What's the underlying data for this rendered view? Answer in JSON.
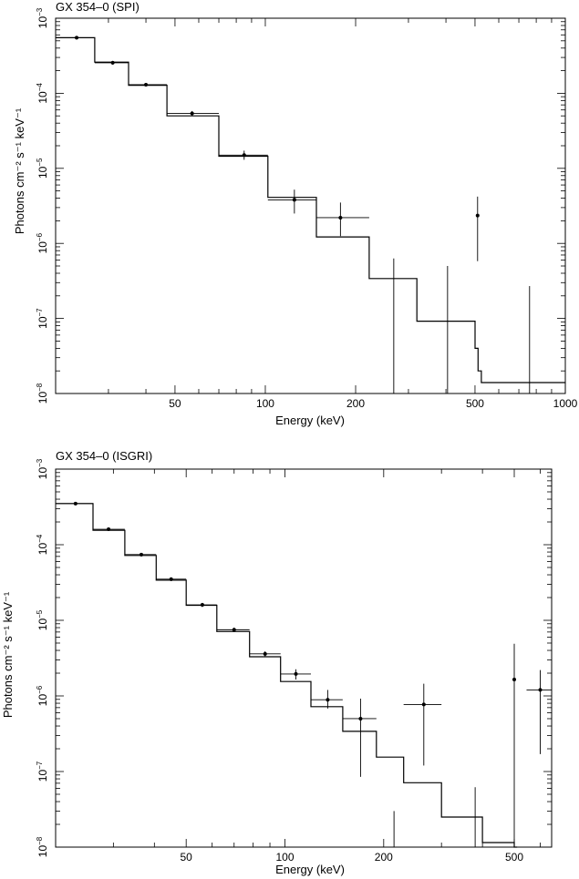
{
  "chart_data": [
    {
      "type": "line",
      "title": "GX 354–0 (SPI)",
      "xlabel": "Energy (keV)",
      "ylabel": "Photons cm⁻² s⁻¹ keV⁻¹",
      "xscale": "log",
      "yscale": "log",
      "xlim": [
        20,
        1000
      ],
      "ylim": [
        1e-08,
        0.001
      ],
      "x_tick_labels": [
        {
          "value": 50,
          "label": "50"
        },
        {
          "value": 100,
          "label": "100"
        },
        {
          "value": 200,
          "label": "200"
        },
        {
          "value": 500,
          "label": "500"
        },
        {
          "value": 1000,
          "label": "1000"
        }
      ],
      "y_tick_labels": [
        {
          "value": 1e-08,
          "base": "10",
          "exp": "−8"
        },
        {
          "value": 1e-07,
          "base": "10",
          "exp": "−7"
        },
        {
          "value": 1e-06,
          "base": "10",
          "exp": "−6"
        },
        {
          "value": 1e-05,
          "base": "10",
          "exp": "−5"
        },
        {
          "value": 0.0001,
          "base": "10",
          "exp": "−4"
        },
        {
          "value": 0.001,
          "base": "10",
          "exp": "−3"
        }
      ],
      "data": [
        {
          "x": 23.5,
          "xlo": 20,
          "xhi": 27,
          "y": 0.00055,
          "ylo": 0.00052,
          "yhi": 0.00058
        },
        {
          "x": 31,
          "xlo": 27,
          "xhi": 35,
          "y": 0.000255,
          "ylo": 0.00024,
          "yhi": 0.00027
        },
        {
          "x": 40,
          "xlo": 35,
          "xhi": 47,
          "y": 0.00013,
          "ylo": 0.000123,
          "yhi": 0.000137
        },
        {
          "x": 57,
          "xlo": 47,
          "xhi": 70,
          "y": 5.4e-05,
          "ylo": 5e-05,
          "yhi": 5.8e-05
        },
        {
          "x": 85,
          "xlo": 70,
          "xhi": 102,
          "y": 1.5e-05,
          "ylo": 1.3e-05,
          "yhi": 1.72e-05
        },
        {
          "x": 125,
          "xlo": 102,
          "xhi": 148,
          "y": 3.8e-06,
          "ylo": 2.5e-06,
          "yhi": 5.2e-06
        },
        {
          "x": 178,
          "xlo": 148,
          "xhi": 222,
          "y": 2.2e-06,
          "ylo": 1.25e-06,
          "yhi": 3.5e-06
        },
        {
          "x": 268,
          "xlo": 268,
          "xhi": 268,
          "y": 0,
          "yhi": 6.3e-07
        },
        {
          "x": 405,
          "xlo": 405,
          "xhi": 405,
          "y": 0,
          "yhi": 5e-07
        },
        {
          "x": 510,
          "xlo": 505,
          "xhi": 515,
          "y": 2.35e-06,
          "ylo": 5.8e-07,
          "yhi": 4.2e-06
        },
        {
          "x": 760,
          "xlo": 760,
          "xhi": 760,
          "y": 0,
          "yhi": 2.7e-07
        }
      ],
      "model": [
        {
          "xlo": 20,
          "xhi": 27,
          "y": 0.00055
        },
        {
          "xlo": 27,
          "xhi": 35,
          "y": 0.00026
        },
        {
          "xlo": 35,
          "xhi": 47,
          "y": 0.000128
        },
        {
          "xlo": 47,
          "xhi": 70,
          "y": 5e-05
        },
        {
          "xlo": 70,
          "xhi": 102,
          "y": 1.45e-05
        },
        {
          "xlo": 102,
          "xhi": 148,
          "y": 4.1e-06
        },
        {
          "xlo": 148,
          "xhi": 222,
          "y": 1.22e-06
        },
        {
          "xlo": 222,
          "xhi": 320,
          "y": 3.4e-07
        },
        {
          "xlo": 320,
          "xhi": 500,
          "y": 9.2e-08
        },
        {
          "xlo": 500,
          "xhi": 512,
          "y": 4e-08
        },
        {
          "xlo": 512,
          "xhi": 525,
          "y": 2e-08
        },
        {
          "xlo": 525,
          "xhi": 1000,
          "y": 1.4e-08
        }
      ]
    },
    {
      "type": "line",
      "title": "GX 354–0 (ISGRI)",
      "xlabel": "Energy (keV)",
      "ylabel": "Photons cm⁻² s⁻¹ keV⁻¹",
      "xscale": "log",
      "yscale": "log",
      "xlim": [
        20,
        650
      ],
      "ylim": [
        1e-08,
        0.001
      ],
      "x_tick_labels": [
        {
          "value": 50,
          "label": "50"
        },
        {
          "value": 100,
          "label": "100"
        },
        {
          "value": 200,
          "label": "200"
        },
        {
          "value": 500,
          "label": "500"
        }
      ],
      "y_tick_labels": [
        {
          "value": 1e-08,
          "base": "10",
          "exp": "−8"
        },
        {
          "value": 1e-07,
          "base": "10",
          "exp": "−7"
        },
        {
          "value": 1e-06,
          "base": "10",
          "exp": "−6"
        },
        {
          "value": 1e-05,
          "base": "10",
          "exp": "−5"
        },
        {
          "value": 0.0001,
          "base": "10",
          "exp": "−4"
        },
        {
          "value": 0.001,
          "base": "10",
          "exp": "−3"
        }
      ],
      "data": [
        {
          "x": 23,
          "xlo": 20,
          "xhi": 26,
          "y": 0.00035,
          "ylo": 0.000335,
          "yhi": 0.000365
        },
        {
          "x": 29,
          "xlo": 26,
          "xhi": 32.5,
          "y": 0.00016,
          "ylo": 0.000153,
          "yhi": 0.000167
        },
        {
          "x": 36.5,
          "xlo": 32.5,
          "xhi": 40.5,
          "y": 7.4e-05,
          "ylo": 7e-05,
          "yhi": 7.8e-05
        },
        {
          "x": 45,
          "xlo": 40.5,
          "xhi": 50,
          "y": 3.5e-05,
          "ylo": 3.3e-05,
          "yhi": 3.7e-05
        },
        {
          "x": 56,
          "xlo": 50,
          "xhi": 62,
          "y": 1.6e-05,
          "ylo": 1.5e-05,
          "yhi": 1.7e-05
        },
        {
          "x": 70,
          "xlo": 62,
          "xhi": 78,
          "y": 7.5e-06,
          "ylo": 7e-06,
          "yhi": 8e-06
        },
        {
          "x": 87,
          "xlo": 78,
          "xhi": 97,
          "y": 3.6e-06,
          "ylo": 3.3e-06,
          "yhi": 3.9e-06
        },
        {
          "x": 108,
          "xlo": 97,
          "xhi": 120,
          "y": 1.95e-06,
          "ylo": 1.65e-06,
          "yhi": 2.25e-06
        },
        {
          "x": 135,
          "xlo": 120,
          "xhi": 150,
          "y": 8.9e-07,
          "ylo": 6.8e-07,
          "yhi": 1.2e-06
        },
        {
          "x": 170,
          "xlo": 150,
          "xhi": 190,
          "y": 5e-07,
          "ylo": 8.5e-08,
          "yhi": 9.2e-07
        },
        {
          "x": 265,
          "xlo": 230,
          "xhi": 300,
          "y": 7.7e-07,
          "ylo": 1.2e-07,
          "yhi": 1.45e-06
        },
        {
          "x": 215,
          "xlo": 215,
          "xhi": 215,
          "y": 0,
          "yhi": 3e-08
        },
        {
          "x": 380,
          "xlo": 380,
          "xhi": 380,
          "y": 0,
          "yhi": 6.2e-08
        },
        {
          "x": 500,
          "xlo": 495,
          "xhi": 505,
          "y": 1.65e-06,
          "ylo": 1e-08,
          "yhi": 4.9e-06
        },
        {
          "x": 600,
          "xlo": 545,
          "xhi": 650,
          "y": 1.2e-06,
          "ylo": 1.7e-07,
          "yhi": 2.2e-06
        }
      ],
      "model": [
        {
          "xlo": 20,
          "xhi": 26,
          "y": 0.00035
        },
        {
          "xlo": 26,
          "xhi": 32.5,
          "y": 0.000155
        },
        {
          "xlo": 32.5,
          "xhi": 40.5,
          "y": 7.2e-05
        },
        {
          "xlo": 40.5,
          "xhi": 50,
          "y": 3.4e-05
        },
        {
          "xlo": 50,
          "xhi": 62,
          "y": 1.58e-05
        },
        {
          "xlo": 62,
          "xhi": 78,
          "y": 7.1e-06
        },
        {
          "xlo": 78,
          "xhi": 97,
          "y": 3.3e-06
        },
        {
          "xlo": 97,
          "xhi": 120,
          "y": 1.55e-06
        },
        {
          "xlo": 120,
          "xhi": 150,
          "y": 7.2e-07
        },
        {
          "xlo": 150,
          "xhi": 190,
          "y": 3.4e-07
        },
        {
          "xlo": 190,
          "xhi": 230,
          "y": 1.55e-07
        },
        {
          "xlo": 230,
          "xhi": 300,
          "y": 7.1e-08
        },
        {
          "xlo": 300,
          "xhi": 400,
          "y": 2.5e-08
        },
        {
          "xlo": 400,
          "xhi": 500,
          "y": 1.15e-08
        },
        {
          "xlo": 500,
          "xhi": 510,
          "y": 1e-08
        }
      ]
    }
  ]
}
